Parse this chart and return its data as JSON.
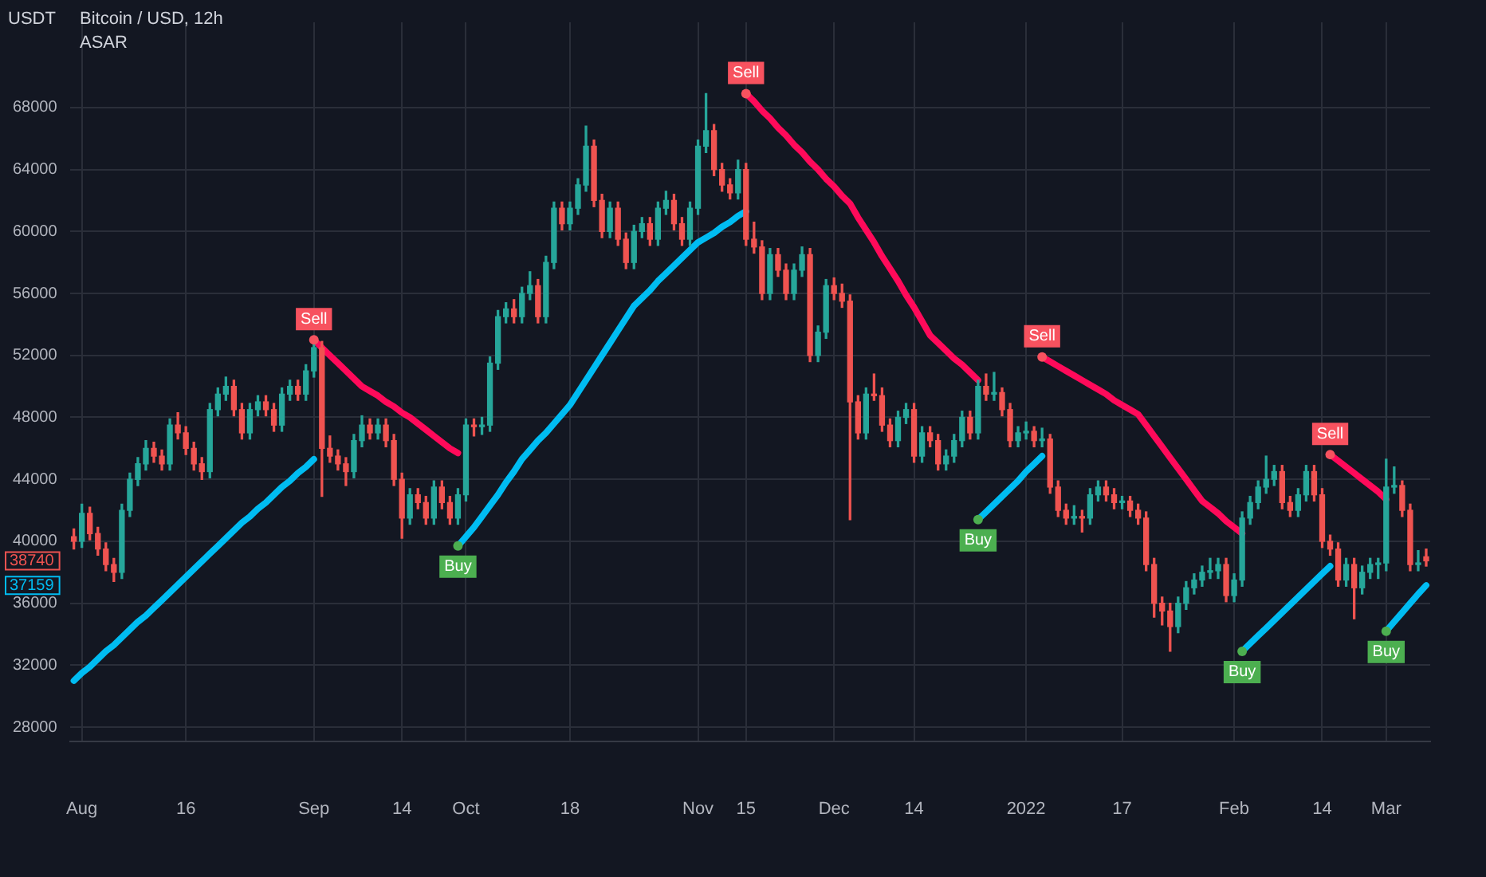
{
  "chart_data": {
    "type": "candlestick",
    "title": "Bitcoin / USD, 12h",
    "subtitle": "ASAR",
    "ylabel": "USDT",
    "categories": [
      null,
      "Aug",
      null,
      null,
      null,
      null,
      null,
      null,
      null,
      null,
      null,
      null,
      null,
      null,
      "16",
      null,
      null,
      null,
      null,
      null,
      null,
      null,
      null,
      null,
      null,
      null,
      null,
      null,
      null,
      null,
      "Sep",
      null,
      null,
      null,
      null,
      null,
      null,
      null,
      null,
      null,
      null,
      "14",
      null,
      null,
      null,
      null,
      null,
      null,
      null,
      "Oct",
      null,
      null,
      null,
      null,
      null,
      null,
      null,
      null,
      null,
      null,
      null,
      null,
      "18",
      null,
      null,
      null,
      null,
      null,
      null,
      null,
      null,
      null,
      null,
      null,
      null,
      null,
      null,
      null,
      "Nov",
      null,
      null,
      null,
      null,
      null,
      "15",
      null,
      null,
      null,
      null,
      null,
      null,
      null,
      null,
      null,
      null,
      "Dec",
      null,
      null,
      null,
      null,
      null,
      null,
      null,
      null,
      null,
      "14",
      null,
      null,
      null,
      null,
      null,
      null,
      null,
      null,
      null,
      null,
      null,
      null,
      null,
      "2022",
      null,
      null,
      null,
      null,
      null,
      null,
      null,
      null,
      null,
      null,
      null,
      "17",
      null,
      null,
      null,
      null,
      null,
      null,
      null,
      null,
      null,
      null,
      null,
      null,
      null,
      "Feb",
      null,
      null,
      null,
      null,
      null,
      null,
      null,
      null,
      null,
      null,
      "14",
      null,
      null,
      null,
      null,
      null,
      null,
      null,
      "Mar",
      null,
      null,
      null,
      null,
      null
    ],
    "ohlc": [
      [
        40300,
        40800,
        39500,
        40000
      ],
      [
        40000,
        42400,
        39600,
        41800
      ],
      [
        41800,
        42200,
        40100,
        40500
      ],
      [
        40500,
        40900,
        39100,
        39500
      ],
      [
        39500,
        39900,
        38100,
        38500
      ],
      [
        38500,
        38900,
        37400,
        38000
      ],
      [
        38000,
        42400,
        37600,
        42000
      ],
      [
        42000,
        44400,
        41600,
        44000
      ],
      [
        44000,
        45400,
        43600,
        45000
      ],
      [
        45000,
        46500,
        44600,
        46000
      ],
      [
        46000,
        46400,
        45100,
        45500
      ],
      [
        45500,
        45900,
        44600,
        45000
      ],
      [
        45000,
        47900,
        44600,
        47500
      ],
      [
        47500,
        48300,
        46600,
        47000
      ],
      [
        47000,
        47400,
        45600,
        46000
      ],
      [
        46000,
        46400,
        44600,
        45000
      ],
      [
        45000,
        45400,
        44000,
        44500
      ],
      [
        44500,
        48900,
        44100,
        48500
      ],
      [
        48500,
        49900,
        48100,
        49500
      ],
      [
        49500,
        50600,
        49100,
        50000
      ],
      [
        50000,
        50400,
        48100,
        48500
      ],
      [
        48500,
        48900,
        46600,
        47000
      ],
      [
        47000,
        48900,
        46600,
        48500
      ],
      [
        48500,
        49400,
        48100,
        49000
      ],
      [
        49000,
        49400,
        48100,
        48500
      ],
      [
        48500,
        48900,
        47100,
        47500
      ],
      [
        47500,
        49900,
        47100,
        49500
      ],
      [
        49500,
        50400,
        49100,
        50000
      ],
      [
        50000,
        50400,
        49100,
        49500
      ],
      [
        49500,
        51400,
        49100,
        51000
      ],
      [
        51000,
        52900,
        50600,
        52500
      ],
      [
        52500,
        52900,
        42900,
        46000
      ],
      [
        46000,
        46800,
        45100,
        45500
      ],
      [
        45500,
        45900,
        44600,
        45000
      ],
      [
        45000,
        45400,
        43600,
        44500
      ],
      [
        44500,
        46900,
        44100,
        46500
      ],
      [
        46500,
        48100,
        46100,
        47500
      ],
      [
        47500,
        47900,
        46600,
        47000
      ],
      [
        47000,
        47900,
        46600,
        47500
      ],
      [
        47500,
        47900,
        46100,
        46500
      ],
      [
        46500,
        46900,
        43600,
        44000
      ],
      [
        44000,
        44400,
        40200,
        41500
      ],
      [
        41500,
        43400,
        41100,
        43000
      ],
      [
        43000,
        43400,
        42100,
        42500
      ],
      [
        42500,
        42900,
        41100,
        41500
      ],
      [
        41500,
        43900,
        41100,
        43500
      ],
      [
        43500,
        43900,
        42100,
        42500
      ],
      [
        42500,
        42900,
        41100,
        41500
      ],
      [
        41500,
        43400,
        41100,
        43000
      ],
      [
        43000,
        47900,
        42600,
        47500
      ],
      [
        47500,
        47900,
        46800,
        47400
      ],
      [
        47400,
        48000,
        46900,
        47500
      ],
      [
        47500,
        51900,
        47100,
        51500
      ],
      [
        51500,
        54900,
        51100,
        54500
      ],
      [
        54500,
        55400,
        54100,
        55000
      ],
      [
        55000,
        55600,
        54100,
        54500
      ],
      [
        54500,
        56400,
        54100,
        56000
      ],
      [
        56000,
        57400,
        55600,
        56500
      ],
      [
        56500,
        56900,
        54100,
        54500
      ],
      [
        54500,
        58400,
        54100,
        58000
      ],
      [
        58000,
        61900,
        57600,
        61500
      ],
      [
        61500,
        61900,
        60100,
        60500
      ],
      [
        60500,
        61900,
        60100,
        61500
      ],
      [
        61500,
        63400,
        61100,
        63000
      ],
      [
        63000,
        66800,
        62600,
        65500
      ],
      [
        65500,
        65900,
        61600,
        62000
      ],
      [
        62000,
        62400,
        59600,
        60000
      ],
      [
        60000,
        61900,
        59600,
        61500
      ],
      [
        61500,
        61900,
        59100,
        59500
      ],
      [
        59500,
        59900,
        57600,
        58000
      ],
      [
        58000,
        60400,
        57600,
        60000
      ],
      [
        60000,
        60900,
        59600,
        60500
      ],
      [
        60500,
        60900,
        59100,
        59500
      ],
      [
        59500,
        61900,
        59100,
        61500
      ],
      [
        61500,
        62600,
        61100,
        62000
      ],
      [
        62000,
        62400,
        60100,
        60500
      ],
      [
        60500,
        60900,
        59100,
        59500
      ],
      [
        59500,
        61900,
        59100,
        61500
      ],
      [
        61500,
        65900,
        61100,
        65500
      ],
      [
        65500,
        68900,
        65100,
        66500
      ],
      [
        66500,
        66900,
        63600,
        64000
      ],
      [
        64000,
        64400,
        62600,
        63000
      ],
      [
        63000,
        63400,
        62100,
        62500
      ],
      [
        62500,
        64600,
        62100,
        64000
      ],
      [
        64000,
        64400,
        59100,
        59500
      ],
      [
        59500,
        60600,
        58600,
        59000
      ],
      [
        59000,
        59400,
        55600,
        56000
      ],
      [
        56000,
        58900,
        55600,
        58500
      ],
      [
        58500,
        58900,
        57100,
        57500
      ],
      [
        57500,
        57900,
        55600,
        56000
      ],
      [
        56000,
        57900,
        55600,
        57500
      ],
      [
        57500,
        59000,
        57100,
        58500
      ],
      [
        58500,
        58900,
        51600,
        52000
      ],
      [
        52000,
        53900,
        51600,
        53500
      ],
      [
        53500,
        56900,
        53100,
        56500
      ],
      [
        56500,
        57000,
        55600,
        56000
      ],
      [
        56000,
        56600,
        55100,
        55500
      ],
      [
        55500,
        55900,
        41400,
        49000
      ],
      [
        49000,
        49400,
        46600,
        47000
      ],
      [
        47000,
        49900,
        46600,
        49500
      ],
      [
        49500,
        50800,
        49100,
        49400
      ],
      [
        49400,
        49900,
        47100,
        47500
      ],
      [
        47500,
        47900,
        46100,
        46500
      ],
      [
        46500,
        48400,
        46100,
        48000
      ],
      [
        48000,
        48900,
        47600,
        48500
      ],
      [
        48500,
        48900,
        45100,
        45500
      ],
      [
        45500,
        47400,
        45100,
        47000
      ],
      [
        47000,
        47400,
        46100,
        46500
      ],
      [
        46500,
        46900,
        44600,
        45000
      ],
      [
        45000,
        45900,
        44600,
        45500
      ],
      [
        45500,
        46900,
        45100,
        46500
      ],
      [
        46500,
        48400,
        46100,
        48000
      ],
      [
        48000,
        48400,
        46600,
        47000
      ],
      [
        47000,
        50400,
        46600,
        50000
      ],
      [
        50000,
        50800,
        49100,
        49500
      ],
      [
        49500,
        50900,
        49100,
        49600
      ],
      [
        49600,
        49900,
        48100,
        48500
      ],
      [
        48500,
        48900,
        46100,
        46500
      ],
      [
        46500,
        47400,
        46100,
        47000
      ],
      [
        47000,
        47700,
        46600,
        47100
      ],
      [
        47100,
        47400,
        46100,
        46500
      ],
      [
        46500,
        47300,
        46100,
        46600
      ],
      [
        46600,
        46900,
        43100,
        43500
      ],
      [
        43500,
        43900,
        41600,
        42000
      ],
      [
        42000,
        42400,
        41100,
        41500
      ],
      [
        41500,
        42300,
        41100,
        41600
      ],
      [
        41600,
        42000,
        40600,
        41500
      ],
      [
        41500,
        43400,
        41100,
        43000
      ],
      [
        43000,
        43900,
        42600,
        43500
      ],
      [
        43500,
        43900,
        42600,
        43000
      ],
      [
        43000,
        43400,
        42100,
        42500
      ],
      [
        42500,
        42900,
        42100,
        42600
      ],
      [
        42600,
        42900,
        41600,
        42000
      ],
      [
        42000,
        42400,
        41100,
        41500
      ],
      [
        41500,
        41900,
        38100,
        38500
      ],
      [
        38500,
        38900,
        35100,
        36000
      ],
      [
        36000,
        36400,
        34600,
        35500
      ],
      [
        35500,
        36000,
        32900,
        34500
      ],
      [
        34500,
        36400,
        34100,
        36000
      ],
      [
        36000,
        37400,
        35600,
        37000
      ],
      [
        37000,
        37900,
        36600,
        37500
      ],
      [
        37500,
        38400,
        37100,
        38000
      ],
      [
        38000,
        38900,
        37600,
        38100
      ],
      [
        38100,
        38900,
        37600,
        38500
      ],
      [
        38500,
        38900,
        36100,
        36500
      ],
      [
        36500,
        37900,
        36100,
        37500
      ],
      [
        37500,
        41900,
        37100,
        41500
      ],
      [
        41500,
        42900,
        41100,
        42500
      ],
      [
        42500,
        43900,
        42100,
        43500
      ],
      [
        43500,
        45500,
        43100,
        44000
      ],
      [
        44000,
        44900,
        43600,
        44500
      ],
      [
        44500,
        44900,
        42100,
        42500
      ],
      [
        42500,
        42900,
        41600,
        42000
      ],
      [
        42000,
        43400,
        41600,
        43000
      ],
      [
        43000,
        44900,
        42600,
        44500
      ],
      [
        44500,
        44900,
        42600,
        43000
      ],
      [
        43000,
        43400,
        39600,
        40000
      ],
      [
        40000,
        40400,
        39100,
        39500
      ],
      [
        39500,
        39900,
        37100,
        37500
      ],
      [
        37500,
        38900,
        37100,
        38500
      ],
      [
        38500,
        38900,
        35000,
        37000
      ],
      [
        37000,
        38400,
        36600,
        38000
      ],
      [
        38000,
        38900,
        37600,
        38500
      ],
      [
        38500,
        38900,
        37600,
        38600
      ],
      [
        38600,
        45300,
        38100,
        43500
      ],
      [
        43500,
        44800,
        43100,
        43600
      ],
      [
        43600,
        43900,
        41600,
        42000
      ],
      [
        42000,
        42400,
        38100,
        38500
      ],
      [
        38500,
        39400,
        38100,
        38600
      ],
      [
        39000,
        39500,
        38400,
        38740
      ]
    ],
    "series": [
      {
        "type": "line",
        "color": "#00bcf2",
        "values": [
          31000,
          31500,
          31900,
          32400,
          32900,
          33300,
          33800,
          34300,
          34800,
          35200,
          35700,
          36200,
          36700,
          37200,
          37700,
          38200,
          38700,
          39200,
          39700,
          40200,
          40700,
          41200,
          41600,
          42100,
          42500,
          43000,
          43500,
          43900,
          44400,
          44800,
          45300,
          null,
          null,
          null,
          null,
          null,
          null,
          null,
          null,
          null,
          null,
          null,
          null,
          null,
          null,
          null,
          null,
          null,
          39700,
          40300,
          40900,
          41600,
          42300,
          43000,
          43800,
          44500,
          45300,
          45900,
          46500,
          47000,
          47600,
          48200,
          48800,
          49600,
          50400,
          51200,
          52000,
          52800,
          53600,
          54400,
          55200,
          55700,
          56200,
          56800,
          57300,
          57800,
          58300,
          58800,
          59300,
          59600,
          59900,
          60300,
          60600,
          61000,
          61300,
          null,
          null,
          null,
          null,
          null,
          null,
          null,
          null,
          null,
          null,
          null,
          null,
          null,
          null,
          null,
          null,
          null,
          null,
          null,
          null,
          null,
          null,
          null,
          null,
          null,
          null,
          null,
          null,
          41400,
          41900,
          42400,
          42900,
          43400,
          43900,
          44500,
          45000,
          45500,
          null,
          null,
          null,
          null,
          null,
          null,
          null,
          null,
          null,
          null,
          null,
          null,
          null,
          null,
          null,
          null,
          null,
          null,
          null,
          null,
          null,
          null,
          null,
          null,
          32900,
          33400,
          33900,
          34400,
          34900,
          35400,
          35900,
          36400,
          36900,
          37400,
          37900,
          38400,
          null,
          null,
          null,
          null,
          null,
          null,
          34200,
          34800,
          35400,
          36000,
          36600,
          37159
        ]
      },
      {
        "type": "line",
        "color": "#ff0a5a",
        "values": [
          null,
          null,
          null,
          null,
          null,
          null,
          null,
          null,
          null,
          null,
          null,
          null,
          null,
          null,
          null,
          null,
          null,
          null,
          null,
          null,
          null,
          null,
          null,
          null,
          null,
          null,
          null,
          null,
          null,
          null,
          53000,
          52500,
          52000,
          51500,
          51000,
          50500,
          50000,
          49700,
          49400,
          49000,
          48700,
          48300,
          48000,
          47600,
          47200,
          46800,
          46400,
          46000,
          45700,
          null,
          null,
          null,
          null,
          null,
          null,
          null,
          null,
          null,
          null,
          null,
          null,
          null,
          null,
          null,
          null,
          null,
          null,
          null,
          null,
          null,
          null,
          null,
          null,
          null,
          null,
          null,
          null,
          null,
          null,
          null,
          null,
          null,
          null,
          null,
          68900,
          68400,
          67800,
          67300,
          66700,
          66200,
          65600,
          65100,
          64500,
          64000,
          63400,
          62900,
          62300,
          61800,
          60900,
          60100,
          59300,
          58400,
          57600,
          56800,
          55900,
          55100,
          54200,
          53300,
          52800,
          52300,
          51800,
          51400,
          50900,
          50400,
          null,
          null,
          null,
          null,
          null,
          null,
          null,
          51900,
          51600,
          51300,
          51000,
          50700,
          50400,
          50100,
          49800,
          49500,
          49100,
          48800,
          48500,
          48200,
          47500,
          46800,
          46100,
          45400,
          44700,
          44000,
          43300,
          42600,
          42200,
          41800,
          41300,
          40900,
          40500,
          null,
          null,
          null,
          null,
          null,
          null,
          null,
          null,
          null,
          null,
          45600,
          45200,
          44800,
          44400,
          44000,
          43600,
          43200,
          42700,
          null,
          null,
          null,
          null,
          null
        ]
      }
    ],
    "ylim": [
      27100,
      73500
    ],
    "yticks": [
      28000,
      32000,
      36000,
      40000,
      44000,
      48000,
      52000,
      56000,
      60000,
      64000,
      68000
    ],
    "grid": true,
    "legend": false,
    "marker": "none",
    "annotations": [
      {
        "text": "Sell",
        "y": 53000
      },
      {
        "text": "Buy",
        "y": 39700
      },
      {
        "text": "Sell",
        "y": 68900
      },
      {
        "text": "Buy",
        "y": 41400
      },
      {
        "text": "Sell",
        "y": 51900
      },
      {
        "text": "Buy",
        "y": 32900
      },
      {
        "text": "Sell",
        "y": 45600
      },
      {
        "text": "Buy",
        "y": 34200
      },
      "38740",
      "37159"
    ]
  }
}
